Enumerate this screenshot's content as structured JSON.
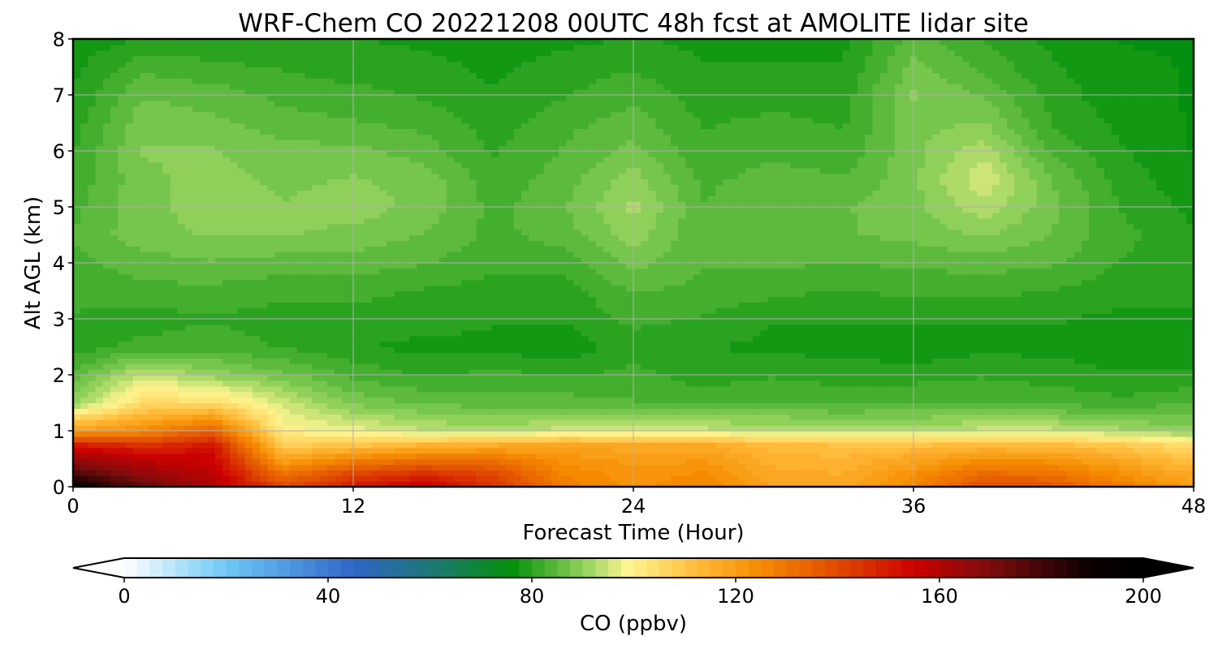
{
  "chart_data": {
    "type": "heatmap",
    "title": "WRF-Chem CO  20221208 00UTC 48h fcst at AMOLITE lidar site",
    "xlabel": "Forecast Time (Hour)",
    "ylabel": "Alt AGL (km)",
    "xlim": [
      0,
      48
    ],
    "ylim": [
      0,
      8
    ],
    "x_ticks": [
      "0",
      "12",
      "24",
      "36",
      "48"
    ],
    "y_ticks": [
      "0",
      "1",
      "2",
      "3",
      "4",
      "5",
      "6",
      "7",
      "8"
    ],
    "grid": true,
    "x_hours": [
      0,
      3,
      6,
      9,
      12,
      15,
      18,
      21,
      24,
      27,
      30,
      33,
      36,
      39,
      42,
      45,
      48
    ],
    "y_km": [
      0,
      0.25,
      0.5,
      0.75,
      1,
      1.5,
      2,
      2.5,
      3,
      3.5,
      4,
      4.5,
      5,
      5.5,
      6,
      6.5,
      7,
      7.5,
      8
    ],
    "values": [
      [
        195,
        175,
        160,
        140,
        150,
        158,
        145,
        128,
        123,
        126,
        118,
        117,
        126,
        140,
        138,
        128,
        120
      ],
      [
        178,
        165,
        158,
        130,
        140,
        145,
        140,
        126,
        122,
        124,
        117,
        116,
        123,
        132,
        130,
        123,
        116
      ],
      [
        165,
        158,
        155,
        118,
        126,
        130,
        130,
        123,
        120,
        121,
        115,
        114,
        118,
        123,
        122,
        117,
        110
      ],
      [
        150,
        145,
        150,
        108,
        110,
        114,
        116,
        118,
        117,
        117,
        112,
        111,
        111,
        112,
        112,
        109,
        104
      ],
      [
        120,
        125,
        135,
        100,
        98,
        94,
        93,
        95,
        96,
        95,
        94,
        93,
        93,
        95,
        95,
        92,
        90
      ],
      [
        90,
        105,
        105,
        95,
        88,
        86,
        85,
        85,
        84,
        83,
        84,
        83,
        84,
        84,
        83,
        82,
        84
      ],
      [
        84,
        95,
        90,
        87,
        83,
        81,
        82,
        81,
        82,
        80,
        81,
        80,
        80,
        81,
        80,
        79,
        79
      ],
      [
        80,
        82,
        83,
        81,
        79,
        78,
        78,
        77,
        80,
        79,
        78,
        78,
        77,
        78,
        78,
        77,
        77
      ],
      [
        81,
        80,
        81,
        80,
        80,
        80,
        79,
        79,
        82,
        81,
        79,
        79,
        79,
        79,
        79,
        78,
        78
      ],
      [
        82,
        83,
        83,
        82,
        82,
        81,
        80,
        80,
        84,
        83,
        82,
        81,
        82,
        82,
        81,
        80,
        80
      ],
      [
        83,
        85,
        86,
        85,
        85,
        84,
        82,
        82,
        87,
        84,
        84,
        84,
        84,
        85,
        84,
        81,
        80
      ],
      [
        84,
        88,
        89,
        89,
        88,
        86,
        83,
        85,
        90,
        84,
        86,
        86,
        87,
        89,
        86,
        82,
        79
      ],
      [
        83,
        88,
        90,
        89,
        90,
        88,
        83,
        86,
        92,
        84,
        86,
        86,
        88,
        93,
        87,
        81,
        78
      ],
      [
        82,
        88,
        90,
        88,
        89,
        88,
        82,
        85,
        90,
        83,
        85,
        84,
        88,
        96,
        86,
        80,
        77
      ],
      [
        81,
        89,
        89,
        87,
        87,
        85,
        81,
        84,
        87,
        82,
        83,
        82,
        88,
        93,
        83,
        79,
        76
      ],
      [
        80,
        88,
        87,
        85,
        84,
        83,
        80,
        83,
        85,
        81,
        82,
        81,
        88,
        89,
        81,
        78,
        76
      ],
      [
        79,
        86,
        85,
        83,
        82,
        81,
        79,
        81,
        83,
        80,
        80,
        80,
        89,
        86,
        80,
        77,
        76
      ],
      [
        78,
        83,
        82,
        81,
        80,
        80,
        78,
        80,
        81,
        79,
        79,
        79,
        87,
        83,
        79,
        77,
        76
      ],
      [
        77,
        79,
        79,
        79,
        79,
        78,
        77,
        78,
        79,
        78,
        78,
        78,
        85,
        81,
        78,
        76,
        76
      ]
    ],
    "colorbar": {
      "label": "CO  (ppbv)",
      "min": 0,
      "max": 200,
      "ticks": [
        "0",
        "40",
        "80",
        "120",
        "160",
        "200"
      ],
      "extend": "both",
      "orientation": "horizontal"
    },
    "colormap_stops": [
      {
        "v": 0,
        "c": "#ffffff"
      },
      {
        "v": 20,
        "c": "#6ec8f5"
      },
      {
        "v": 45,
        "c": "#2f66c8"
      },
      {
        "v": 62,
        "c": "#1b7a6a"
      },
      {
        "v": 76,
        "c": "#03910a"
      },
      {
        "v": 90,
        "c": "#8fd05a"
      },
      {
        "v": 99,
        "c": "#fff590"
      },
      {
        "v": 112,
        "c": "#ffbd3c"
      },
      {
        "v": 125,
        "c": "#f58a00"
      },
      {
        "v": 140,
        "c": "#e04a00"
      },
      {
        "v": 155,
        "c": "#cc0000"
      },
      {
        "v": 170,
        "c": "#7c0d0d"
      },
      {
        "v": 190,
        "c": "#0a0000"
      },
      {
        "v": 200,
        "c": "#000000"
      }
    ]
  }
}
